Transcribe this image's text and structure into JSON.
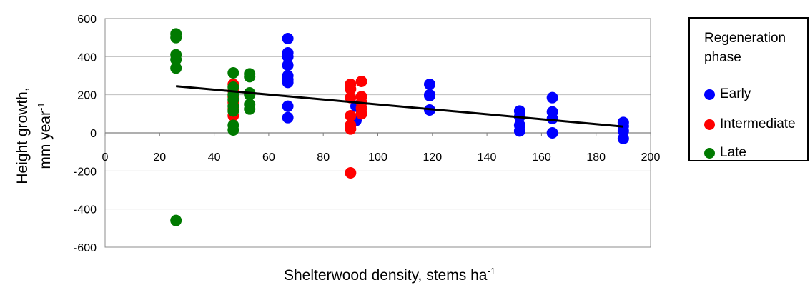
{
  "chart_data": {
    "type": "scatter",
    "title": "",
    "xlabel": "Shelterwood density, stems ha",
    "xlabel_sup": "-1",
    "ylabel_line1": "Height growth,",
    "ylabel_line2": "mm year",
    "ylabel_sup": "-1",
    "xlim": [
      0,
      200
    ],
    "ylim": [
      -600,
      600
    ],
    "x_ticks": [
      0,
      20,
      40,
      60,
      80,
      100,
      120,
      140,
      160,
      180,
      200
    ],
    "y_ticks": [
      600,
      400,
      200,
      0,
      -200,
      -400,
      -600
    ],
    "grid": "horizontal",
    "legend": {
      "title": "Regeneration phase",
      "placement": "right",
      "entries": [
        "Early",
        "Intermediate",
        "Late"
      ]
    },
    "series": [
      {
        "name": "Early",
        "color": "#0000ff",
        "points": [
          [
            67,
            495
          ],
          [
            67,
            420
          ],
          [
            67,
            400
          ],
          [
            67,
            355
          ],
          [
            67,
            300
          ],
          [
            67,
            280
          ],
          [
            67,
            265
          ],
          [
            67,
            140
          ],
          [
            67,
            80
          ],
          [
            92,
            140
          ],
          [
            92,
            65
          ],
          [
            119,
            255
          ],
          [
            119,
            200
          ],
          [
            119,
            195
          ],
          [
            119,
            120
          ],
          [
            152,
            115
          ],
          [
            152,
            85
          ],
          [
            152,
            40
          ],
          [
            152,
            10
          ],
          [
            164,
            185
          ],
          [
            164,
            110
          ],
          [
            164,
            75
          ],
          [
            164,
            0
          ],
          [
            190,
            55
          ],
          [
            190,
            35
          ],
          [
            190,
            10
          ],
          [
            190,
            -30
          ]
        ]
      },
      {
        "name": "Intermediate",
        "color": "#ff0000",
        "points": [
          [
            47,
            255
          ],
          [
            47,
            220
          ],
          [
            47,
            190
          ],
          [
            47,
            160
          ],
          [
            47,
            125
          ],
          [
            47,
            90
          ],
          [
            90,
            255
          ],
          [
            90,
            230
          ],
          [
            90,
            185
          ],
          [
            90,
            90
          ],
          [
            90,
            40
          ],
          [
            90,
            20
          ],
          [
            90,
            -210
          ],
          [
            94,
            270
          ],
          [
            94,
            190
          ],
          [
            94,
            160
          ],
          [
            94,
            130
          ],
          [
            94,
            100
          ]
        ]
      },
      {
        "name": "Late",
        "color": "#007a00",
        "points": [
          [
            26,
            520
          ],
          [
            26,
            500
          ],
          [
            26,
            410
          ],
          [
            26,
            385
          ],
          [
            26,
            340
          ],
          [
            26,
            -460
          ],
          [
            47,
            315
          ],
          [
            47,
            240
          ],
          [
            47,
            200
          ],
          [
            47,
            175
          ],
          [
            47,
            140
          ],
          [
            47,
            115
          ],
          [
            47,
            40
          ],
          [
            47,
            15
          ],
          [
            53,
            310
          ],
          [
            53,
            295
          ],
          [
            53,
            210
          ],
          [
            53,
            200
          ],
          [
            53,
            150
          ],
          [
            53,
            125
          ]
        ]
      }
    ],
    "trendline": {
      "x": [
        26,
        190
      ],
      "y": [
        245,
        33
      ],
      "color": "#000000"
    }
  }
}
